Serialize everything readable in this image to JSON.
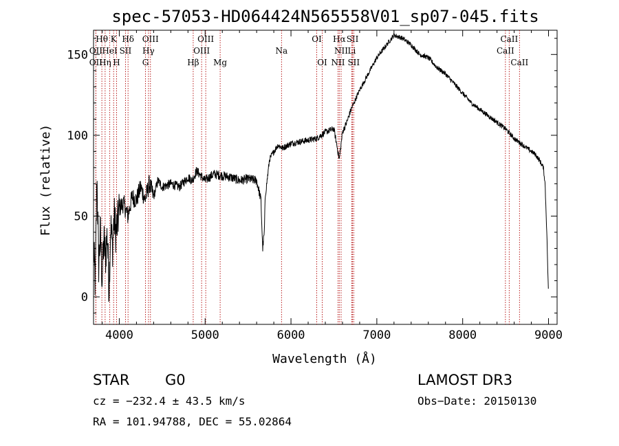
{
  "chart_data": {
    "type": "line",
    "title": "spec-57053-HD064424N565558V01_sp07-045.fits",
    "xlabel": "Wavelength (Å)",
    "ylabel": "Flux (relative)",
    "xlim": [
      3700,
      9100
    ],
    "ylim": [
      -17,
      165
    ],
    "xticks": [
      4000,
      5000,
      6000,
      7000,
      8000,
      9000
    ],
    "yticks": [
      0,
      50,
      100,
      150
    ],
    "series": [
      {
        "name": "flux",
        "x": [
          3700,
          3720,
          3740,
          3760,
          3780,
          3800,
          3820,
          3840,
          3860,
          3880,
          3900,
          3920,
          3940,
          3960,
          3980,
          4000,
          4050,
          4100,
          4150,
          4200,
          4250,
          4300,
          4350,
          4400,
          4450,
          4500,
          4600,
          4700,
          4800,
          4850,
          4900,
          5000,
          5100,
          5200,
          5300,
          5400,
          5500,
          5600,
          5650,
          5670,
          5690,
          5700,
          5750,
          5800,
          5850,
          5900,
          6000,
          6100,
          6200,
          6300,
          6400,
          6500,
          6530,
          6563,
          6600,
          6650,
          6700,
          6750,
          6800,
          6900,
          7000,
          7100,
          7200,
          7300,
          7400,
          7500,
          7600,
          7700,
          7800,
          7900,
          8000,
          8100,
          8200,
          8300,
          8400,
          8500,
          8600,
          8700,
          8800,
          8850,
          8900,
          8940,
          8960,
          8980,
          9000
        ],
        "y": [
          30,
          8,
          75,
          20,
          40,
          10,
          35,
          25,
          40,
          5,
          45,
          30,
          50,
          40,
          45,
          55,
          58,
          50,
          62,
          60,
          68,
          60,
          70,
          62,
          72,
          68,
          70,
          68,
          74,
          72,
          78,
          72,
          76,
          75,
          74,
          72,
          73,
          72,
          60,
          30,
          40,
          62,
          85,
          90,
          94,
          92,
          95,
          96,
          97,
          98,
          102,
          104,
          95,
          85,
          102,
          108,
          116,
          122,
          128,
          138,
          148,
          155,
          162,
          160,
          156,
          150,
          148,
          142,
          138,
          132,
          126,
          120,
          116,
          112,
          108,
          104,
          98,
          94,
          90,
          88,
          84,
          80,
          70,
          40,
          0
        ]
      }
    ],
    "line_markers": [
      {
        "label": "Hθ",
        "x": 3797,
        "row": 1
      },
      {
        "label": "K",
        "x": 3934,
        "row": 1
      },
      {
        "label": "Hδ",
        "x": 4102,
        "row": 1
      },
      {
        "label": "OIII",
        "x": 4363,
        "row": 1
      },
      {
        "label": "OIII",
        "x": 5007,
        "row": 1
      },
      {
        "label": "OI",
        "x": 6300,
        "row": 1
      },
      {
        "label": "Hα",
        "x": 6563,
        "row": 1
      },
      {
        "label": "SII",
        "x": 6717,
        "row": 1
      },
      {
        "label": "CaII",
        "x": 8542,
        "row": 1
      },
      {
        "label": "OII",
        "x": 3727,
        "row": 2
      },
      {
        "label": "HeI",
        "x": 3889,
        "row": 2
      },
      {
        "label": "SII",
        "x": 4072,
        "row": 2
      },
      {
        "label": "Hγ",
        "x": 4340,
        "row": 2
      },
      {
        "label": "OIII",
        "x": 4959,
        "row": 2
      },
      {
        "label": "Na",
        "x": 5890,
        "row": 2
      },
      {
        "label": "NII",
        "x": 6584,
        "row": 2
      },
      {
        "label": "Li",
        "x": 6708,
        "row": 2
      },
      {
        "label": "CaII",
        "x": 8498,
        "row": 2
      },
      {
        "label": "OII",
        "x": 3727,
        "row": 3
      },
      {
        "label": "Hη",
        "x": 3835,
        "row": 3
      },
      {
        "label": "H",
        "x": 3968,
        "row": 3
      },
      {
        "label": "G",
        "x": 4305,
        "row": 3
      },
      {
        "label": "Hβ",
        "x": 4861,
        "row": 3
      },
      {
        "label": "Mg",
        "x": 5175,
        "row": 3
      },
      {
        "label": "OI",
        "x": 6364,
        "row": 3
      },
      {
        "label": "NII",
        "x": 6548,
        "row": 3
      },
      {
        "label": "SII",
        "x": 6731,
        "row": 3
      },
      {
        "label": "CaII",
        "x": 8662,
        "row": 3
      }
    ],
    "line_color": "#b00000"
  },
  "info": {
    "object_class": "STAR",
    "subclass": "G0",
    "survey": "LAMOST DR3",
    "redshift": "cz = −232.4 ± 43.5 km/s",
    "obs_date": "Obs−Date: 20150130",
    "coords": "RA = 101.94788, DEC =  55.02864"
  }
}
